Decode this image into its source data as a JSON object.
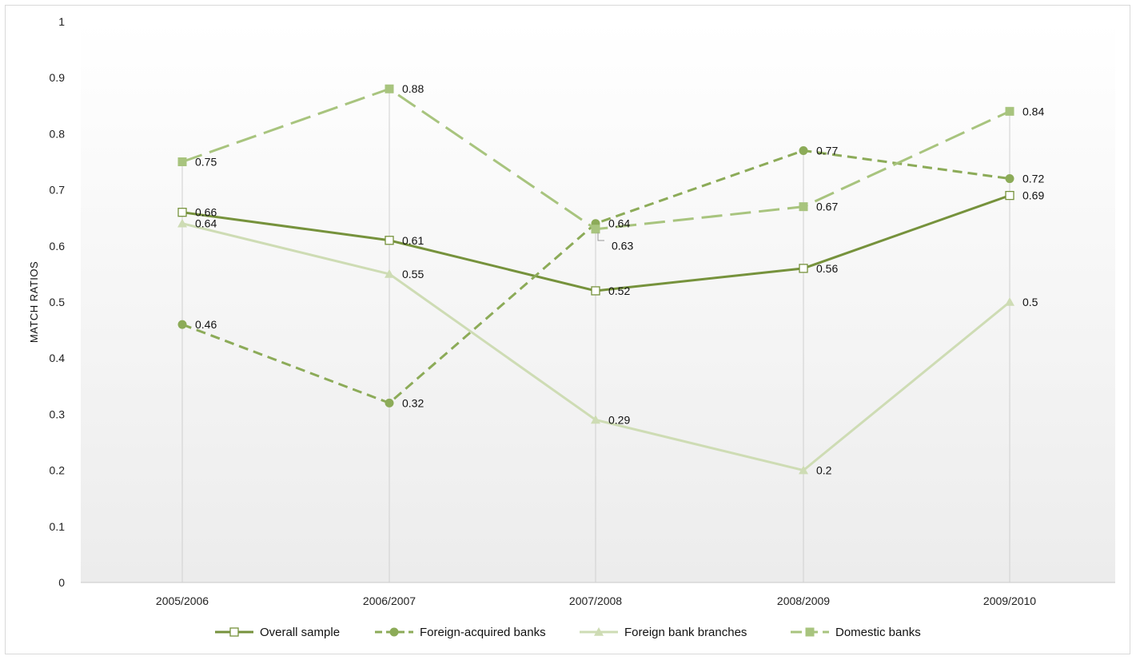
{
  "chart_data": {
    "type": "line",
    "title": "",
    "xlabel": "",
    "ylabel": "MATCH RATIOS",
    "categories": [
      "2005/2006",
      "2006/2007",
      "2007/2008",
      "2008/2009",
      "2009/2010"
    ],
    "ylim": [
      0,
      1
    ],
    "yticks": [
      "0",
      "0.1",
      "0.2",
      "0.3",
      "0.4",
      "0.5",
      "0.6",
      "0.7",
      "0.8",
      "0.9",
      "1"
    ],
    "grid": false,
    "drop_lines": true,
    "legend_position": "bottom",
    "series": [
      {
        "name": "Overall sample",
        "values": [
          0.66,
          0.61,
          0.52,
          0.56,
          0.69
        ],
        "labels": [
          "0.66",
          "0.61",
          "0.52",
          "0.56",
          "0.69"
        ],
        "color": "#76923c",
        "marker": "square-open",
        "line_style": "solid"
      },
      {
        "name": "Foreign-acquired banks",
        "values": [
          0.46,
          0.32,
          0.64,
          0.77,
          0.72
        ],
        "labels": [
          "0.46",
          "0.32",
          "0.64",
          "0.77",
          "0.72"
        ],
        "color": "#8cab58",
        "marker": "circle",
        "line_style": "dash"
      },
      {
        "name": "Foreign bank branches",
        "values": [
          0.64,
          0.55,
          0.29,
          0.2,
          0.5
        ],
        "labels": [
          "0.64",
          "0.55",
          "0.29",
          "0.2",
          "0.5"
        ],
        "color": "#cedcb4",
        "marker": "triangle",
        "line_style": "solid"
      },
      {
        "name": "Domestic banks",
        "values": [
          0.75,
          0.88,
          0.63,
          0.67,
          0.84
        ],
        "labels": [
          "0.75",
          "0.88",
          "0.63",
          "0.67",
          "0.84"
        ],
        "color": "#a8c47e",
        "marker": "square",
        "line_style": "longdash"
      }
    ]
  }
}
